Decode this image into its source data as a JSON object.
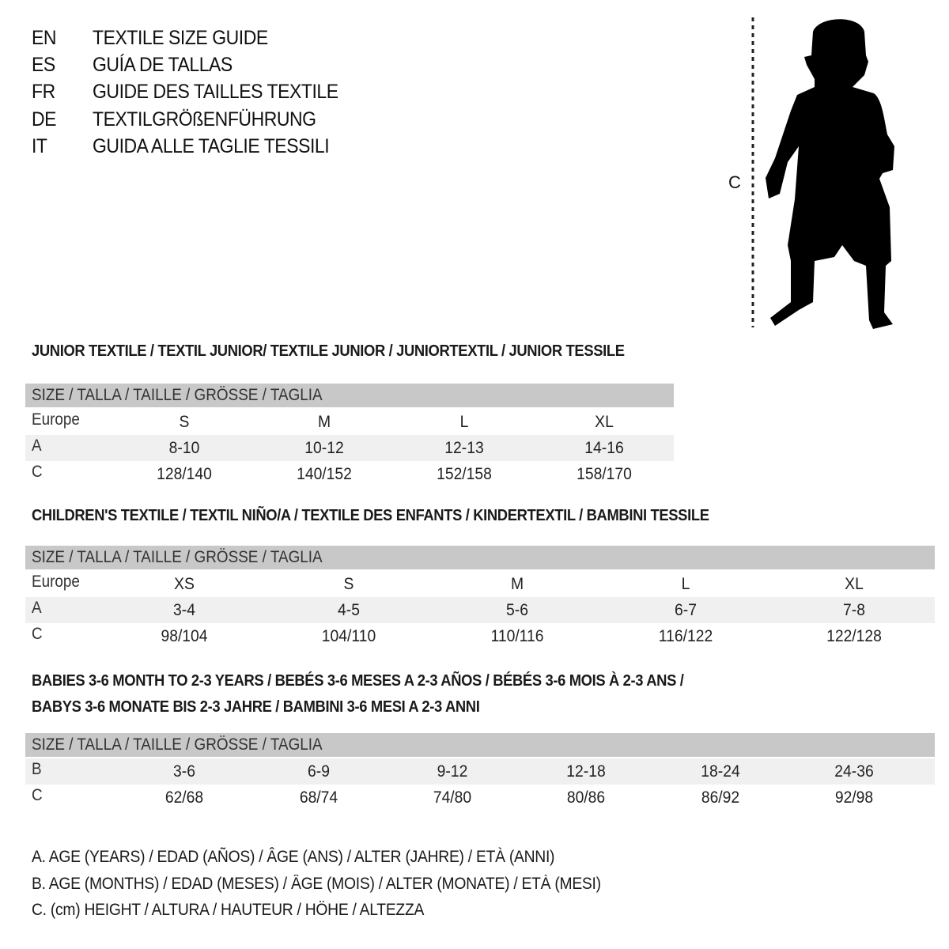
{
  "header": {
    "languages": [
      {
        "code": "EN",
        "title": "TEXTILE SIZE GUIDE"
      },
      {
        "code": "ES",
        "title": "GUÍA DE TALLAS"
      },
      {
        "code": "FR",
        "title": "GUIDE DES TAILLES TEXTILE"
      },
      {
        "code": "DE",
        "title": "TEXTILGRÖßENFÜHRUNG"
      },
      {
        "code": "IT",
        "title": "GUIDA ALLE TAGLIE TESSILI"
      }
    ]
  },
  "figure": {
    "measure_label": "C",
    "icon": "child-silhouette-icon"
  },
  "colors": {
    "header_row": "#c8c8c8",
    "shaded_row": "#f0f0f0",
    "text": "#111111"
  },
  "junior": {
    "title": "JUNIOR TEXTILE / TEXTIL JUNIOR/ TEXTILE JUNIOR / JUNIORTEXTIL / JUNIOR TESSILE",
    "header": "SIZE / TALLA / TAILLE / GRÖSSE / TAGLIA",
    "rows": [
      {
        "label": "Europe",
        "values": [
          "S",
          "M",
          "L",
          "XL"
        ]
      },
      {
        "label": "A",
        "values": [
          "8-10",
          "10-12",
          "12-13",
          "14-16"
        ]
      },
      {
        "label": "C",
        "values": [
          "128/140",
          "140/152",
          "152/158",
          "158/170"
        ]
      }
    ]
  },
  "children": {
    "title": "CHILDREN'S TEXTILE / TEXTIL NIÑO/A / TEXTILE DES ENFANTS / KINDERTEXTIL / BAMBINI TESSILE",
    "header": "SIZE / TALLA / TAILLE / GRÖSSE / TAGLIA",
    "rows": [
      {
        "label": "Europe",
        "values": [
          "XS",
          "S",
          "M",
          "L",
          "XL"
        ]
      },
      {
        "label": "A",
        "values": [
          "3-4",
          "4-5",
          "5-6",
          "6-7",
          "7-8"
        ]
      },
      {
        "label": "C",
        "values": [
          "98/104",
          "104/110",
          "110/116",
          "116/122",
          "122/128"
        ]
      }
    ]
  },
  "babies": {
    "title_line1": "BABIES 3-6 MONTH TO 2-3 YEARS / BEBÉS 3-6 MESES A 2-3 AÑOS / BÉBÉS 3-6 MOIS À 2-3 ANS /",
    "title_line2": "BABYS 3-6 MONATE BIS 2-3 JAHRE / BAMBINI 3-6 MESI A 2-3 ANNI",
    "header": "SIZE / TALLA / TAILLE / GRÖSSE / TAGLIA",
    "rows": [
      {
        "label": "B",
        "values": [
          "3-6",
          "6-9",
          "9-12",
          "12-18",
          "18-24",
          "24-36"
        ]
      },
      {
        "label": "C",
        "values": [
          "62/68",
          "68/74",
          "74/80",
          "80/86",
          "86/92",
          "92/98"
        ]
      }
    ]
  },
  "legend": [
    "A. AGE (YEARS) / EDAD (AÑOS) / ÂGE (ANS) / ALTER (JAHRE) / ETÀ (ANNI)",
    "B. AGE (MONTHS) / EDAD (MESES) / ÂGE (MOIS) / ALTER (MONATE) / ETÀ (MESI)",
    "C. (cm) HEIGHT / ALTURA / HAUTEUR / HÖHE / ALTEZZA"
  ]
}
